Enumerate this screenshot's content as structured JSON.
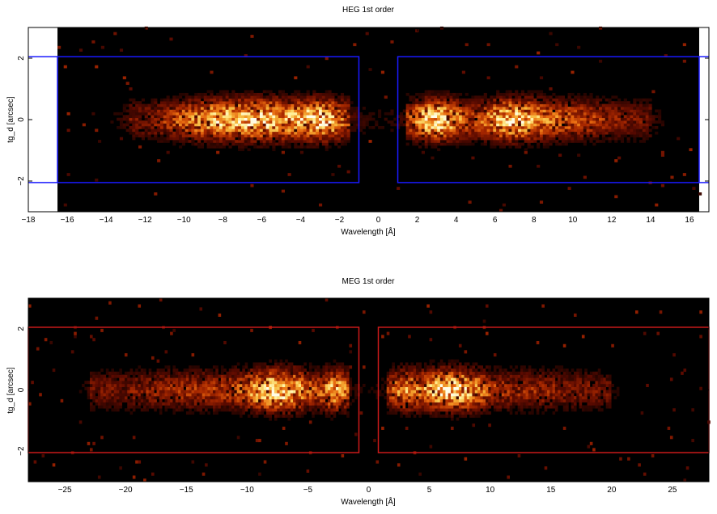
{
  "chart_data": [
    {
      "type": "heatmap",
      "title": "HEG 1st order",
      "xlabel": "Wavelength [Å]",
      "ylabel": "tg_d [arcsec]",
      "xlim": [
        -18,
        17
      ],
      "ylim": [
        -3,
        3
      ],
      "x_ticks": [
        -18,
        -16,
        -14,
        -12,
        -10,
        -8,
        -6,
        -4,
        -2,
        0,
        2,
        4,
        6,
        8,
        10,
        12,
        14,
        16
      ],
      "y_ticks": [
        -2,
        0,
        2
      ],
      "data_extent_x": [
        -16.5,
        16.5
      ],
      "colormap": [
        "#000000",
        "#5a0a00",
        "#a82800",
        "#e86a10",
        "#f7b53a",
        "#ffec8c",
        "#fffde8"
      ],
      "box_color": "#1a1aff",
      "extraction_boxes": [
        {
          "x": [
            -16.5,
            -1
          ],
          "y": [
            -2.05,
            2.05
          ]
        },
        {
          "x": [
            1,
            16.5
          ],
          "y": [
            -2.05,
            2.05
          ]
        }
      ],
      "intensity_profile": [
        {
          "x_range": [
            -12.8,
            -1.5
          ],
          "peaks": [
            {
              "x": -8,
              "width": 2.5,
              "height": 0.8
            },
            {
              "x": -3,
              "width": 1.3,
              "height": 1.0
            },
            {
              "x": -5.5,
              "width": 1.5,
              "height": 0.6
            }
          ]
        },
        {
          "x_range": [
            1.5,
            14
          ],
          "peaks": [
            {
              "x": 3,
              "width": 1.3,
              "height": 1.0
            },
            {
              "x": 6.8,
              "width": 1.5,
              "height": 0.85
            },
            {
              "x": 9.5,
              "width": 2.5,
              "height": 0.35
            }
          ]
        }
      ],
      "seed": 7
    },
    {
      "type": "heatmap",
      "title": "MEG 1st order",
      "xlabel": "Wavelength [Å]",
      "ylabel": "tg_d [arcsec]",
      "xlim": [
        -28,
        28
      ],
      "ylim": [
        -3,
        3
      ],
      "x_ticks": [
        -25,
        -20,
        -15,
        -10,
        -5,
        0,
        5,
        10,
        15,
        20,
        25
      ],
      "y_ticks": [
        -2,
        0,
        2
      ],
      "data_extent_x": [
        -28,
        28
      ],
      "colormap": [
        "#000000",
        "#5a0a00",
        "#a82800",
        "#e86a10",
        "#f7b53a",
        "#ffec8c",
        "#fffde8"
      ],
      "box_color": "#cc1a1a",
      "extraction_boxes": [
        {
          "x": [
            -28,
            -0.8
          ],
          "y": [
            -2.05,
            2.05
          ]
        },
        {
          "x": [
            0.8,
            28
          ],
          "y": [
            -2.05,
            2.05
          ]
        }
      ],
      "intensity_profile": [
        {
          "x_range": [
            -23,
            -1.5
          ],
          "peaks": [
            {
              "x": -7.5,
              "width": 2.6,
              "height": 1.0
            },
            {
              "x": -2.7,
              "width": 1.1,
              "height": 0.75
            },
            {
              "x": -14,
              "width": 5,
              "height": 0.2
            }
          ]
        },
        {
          "x_range": [
            1.5,
            20
          ],
          "peaks": [
            {
              "x": 6.8,
              "width": 2.6,
              "height": 1.0
            },
            {
              "x": 3,
              "width": 1.3,
              "height": 0.5
            },
            {
              "x": 13,
              "width": 4,
              "height": 0.15
            }
          ]
        }
      ],
      "seed": 13
    }
  ]
}
